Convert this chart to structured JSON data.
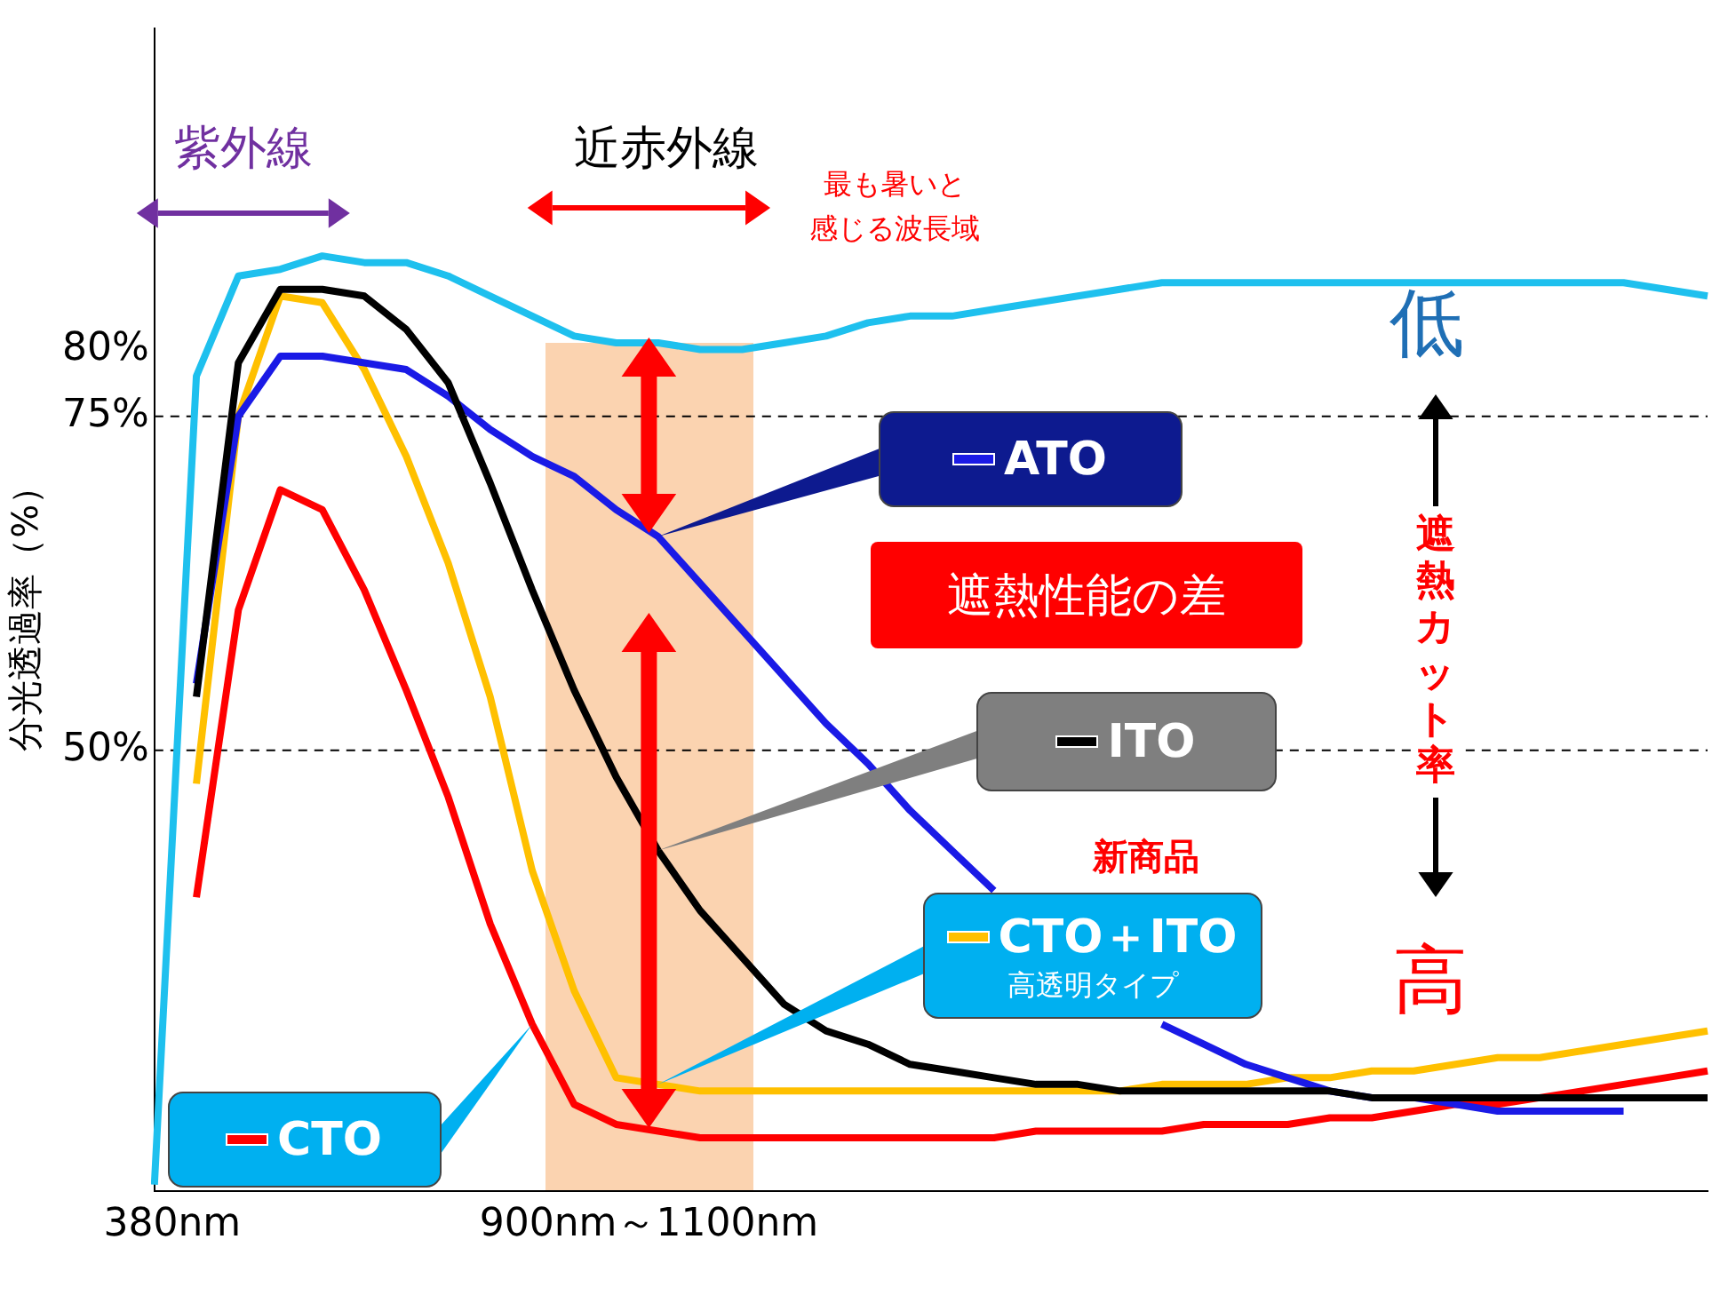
{
  "chart_data": {
    "type": "line",
    "ylabel": "分光透過率（%）",
    "categories": [
      null,
      null,
      null,
      null,
      null,
      null,
      null,
      null,
      null,
      null,
      null,
      null,
      null,
      null,
      null,
      null,
      null,
      null,
      null,
      null,
      null,
      null,
      null,
      null,
      null,
      null,
      null,
      null,
      null,
      null,
      null,
      null,
      null,
      null,
      null,
      null,
      null,
      null
    ],
    "ylim": [
      17,
      104
    ],
    "yticks": [
      {
        "value": 80,
        "label": "80%"
      },
      {
        "value": 75,
        "label": "75%"
      },
      {
        "value": 50,
        "label": "50%"
      }
    ],
    "legend": "bottom left",
    "marker": "none",
    "line_style": "solid",
    "ref_lines": [
      {
        "axis": "y",
        "value": 75,
        "color": "#000000",
        "line_style": "dashed"
      },
      {
        "axis": "y",
        "value": 50,
        "color": "#000000",
        "line_style": "dashed"
      }
    ],
    "annotations": [
      "紫外線",
      "近赤外線",
      "最も暑いと感じる波長域",
      "遮熱性能の差",
      "低",
      "遮熱カット率",
      "高",
      "新商品",
      "高透明タイプ",
      "380nm",
      "900nm～1100nm"
    ],
    "series": [
      {
        "color": "#1ec0ee",
        "values": [
          17.5,
          78,
          85.5,
          86,
          87,
          86.5,
          86.5,
          85.5,
          84,
          82.5,
          81,
          80.5,
          80.5,
          80,
          80,
          80.5,
          81,
          82,
          82.5,
          82.5,
          83,
          83.5,
          84,
          84.5,
          85,
          85,
          85,
          85,
          85,
          85,
          85,
          85,
          85,
          85,
          85,
          85,
          84.5,
          84
        ]
      },
      {
        "name": "ITO",
        "color": "#000000",
        "values": [
          null,
          54,
          79,
          84.5,
          84.5,
          84,
          81.5,
          77.5,
          70,
          62,
          54.5,
          48,
          42.5,
          38,
          34.5,
          31,
          29,
          28,
          26.5,
          26,
          25.5,
          25,
          25,
          24.5,
          24.5,
          24.5,
          24.5,
          24.5,
          24.5,
          24,
          24,
          24,
          24,
          24,
          24,
          24,
          24,
          24
        ]
      },
      {
        "name": "ATO",
        "color": "#1a1ae6",
        "values": [
          null,
          55,
          75,
          79.5,
          79.5,
          79,
          78.5,
          76.5,
          74,
          72,
          70.5,
          68,
          66,
          62.5,
          59,
          55.5,
          52,
          49,
          45.5,
          42.5,
          39.5,
          null,
          null,
          null,
          29.5,
          28,
          26.5,
          25.5,
          24.5,
          24,
          24,
          23.5,
          23,
          23,
          23,
          23,
          null,
          null
        ]
      },
      {
        "name": "CTO＋ITO",
        "color": "#ffc000",
        "values": [
          null,
          47.5,
          75,
          84,
          83.5,
          78.5,
          72,
          64,
          54,
          41,
          32,
          25.5,
          25,
          24.5,
          24.5,
          24.5,
          24.5,
          24.5,
          24.5,
          24.5,
          24.5,
          24.5,
          24.5,
          24.5,
          25,
          25,
          25,
          25.5,
          25.5,
          26,
          26,
          26.5,
          27,
          27,
          27.5,
          28,
          28.5,
          29
        ]
      },
      {
        "name": "CTO",
        "color": "#ff0000",
        "values": [
          null,
          39,
          60.5,
          69.5,
          68,
          62,
          54.5,
          46.5,
          37,
          29.5,
          23.5,
          22,
          21.5,
          21,
          21,
          21,
          21,
          21,
          21,
          21,
          21,
          21.5,
          21.5,
          21.5,
          21.5,
          22,
          22,
          22,
          22.5,
          22.5,
          23,
          23.5,
          23.5,
          24,
          24.5,
          25,
          25.5,
          26
        ]
      }
    ]
  }
}
